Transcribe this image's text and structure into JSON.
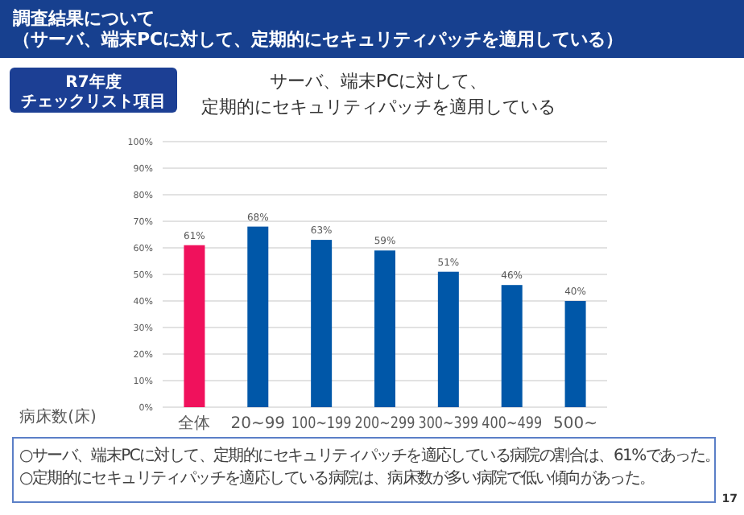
{
  "chart_data": {
    "type": "bar",
    "title": "サーバ、端末PCに対して、",
    "subtitle": "定期的にセキュリティパッチを適用している",
    "xlabel": "病床数(床)",
    "categories": [
      "全体",
      "20~99",
      "100~199",
      "200~299",
      "300~399",
      "400~499",
      "500~"
    ],
    "values": [
      61,
      68,
      63,
      59,
      51,
      46,
      40
    ],
    "colors": [
      "#f0115c",
      "#0057a8",
      "#0057a8",
      "#0057a8",
      "#0057a8",
      "#0057a8",
      "#0057a8"
    ],
    "ylim": [
      0,
      100
    ],
    "yticks": [
      {
        "value": 0,
        "label": "0%"
      },
      {
        "value": 10,
        "label": "10%"
      },
      {
        "value": 20,
        "label": "20%"
      },
      {
        "value": 30,
        "label": "30%"
      },
      {
        "value": 40,
        "label": "40%"
      },
      {
        "value": 50,
        "label": "50%"
      },
      {
        "value": 60,
        "label": "60%"
      },
      {
        "value": 70,
        "label": "70%"
      },
      {
        "value": 80,
        "label": "80%"
      },
      {
        "value": 90,
        "label": "90%"
      },
      {
        "value": 100,
        "label": "100%"
      }
    ],
    "value_labels": [
      "61%",
      "68%",
      "63%",
      "59%",
      "51%",
      "46%",
      "40%"
    ],
    "grid": "y",
    "annotations": [
      "調査結果について",
      "（サーバ、端末PCに対して、定期的にセキュリティパッチを適用している）",
      "R7年度",
      "チェックリスト項目",
      "○サーバ、端末PCに対して、定期的にセキュリティパッチを適応している病院の割合は、61%であった。",
      "○定期的にセキュリティパッチを適応している病院は、病床数が多い病院で低い傾向があった。",
      "17"
    ]
  }
}
